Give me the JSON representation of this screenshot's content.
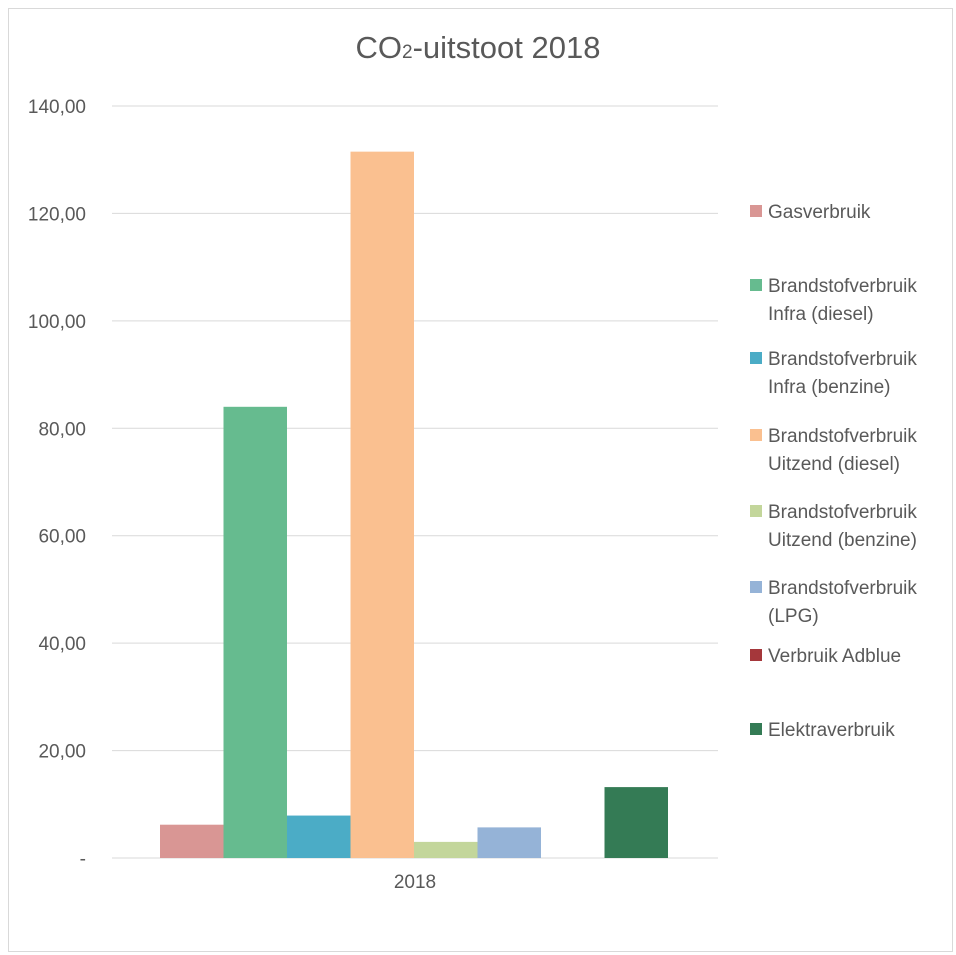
{
  "chart_data": {
    "type": "bar",
    "title": {
      "main": "CO",
      "subscript": "2",
      "rest": "-uitstoot 2018"
    },
    "categories": [
      "2018"
    ],
    "ylim": [
      0,
      140
    ],
    "yticks": [
      "-",
      "20,00",
      "40,00",
      "60,00",
      "80,00",
      "100,00",
      "120,00",
      "140,00"
    ],
    "grid": true,
    "legend_position": "right",
    "series": [
      {
        "name": "Gasverbruik",
        "label_lines": [
          "Gasverbruik"
        ],
        "values": [
          6.2
        ],
        "color": "#d99694"
      },
      {
        "name": "Brandstofverbruik Infra (diesel)",
        "label_lines": [
          "Brandstofverbruik",
          "Infra (diesel)"
        ],
        "values": [
          84.0
        ],
        "color": "#66bb8f"
      },
      {
        "name": "Brandstofverbruik Infra (benzine)",
        "label_lines": [
          "Brandstofverbruik",
          "Infra (benzine)"
        ],
        "values": [
          7.9
        ],
        "color": "#4bacc6"
      },
      {
        "name": "Brandstofverbruik Uitzend (diesel)",
        "label_lines": [
          "Brandstofverbruik",
          "Uitzend (diesel)"
        ],
        "values": [
          131.5
        ],
        "color": "#fac090"
      },
      {
        "name": "Brandstofverbruik Uitzend (benzine)",
        "label_lines": [
          "Brandstofverbruik",
          "Uitzend (benzine)"
        ],
        "values": [
          3.0
        ],
        "color": "#c3d69b"
      },
      {
        "name": "Brandstofverbruik (LPG)",
        "label_lines": [
          "Brandstofverbruik",
          "(LPG)"
        ],
        "values": [
          5.7
        ],
        "color": "#95b3d7"
      },
      {
        "name": "Verbruik Adblue",
        "label_lines": [
          "Verbruik Adblue"
        ],
        "values": [
          0
        ],
        "color": "#a5373b"
      },
      {
        "name": "Elektraverbruik",
        "label_lines": [
          "Elektraverbruik"
        ],
        "values": [
          13.2
        ],
        "color": "#347b55"
      }
    ]
  }
}
